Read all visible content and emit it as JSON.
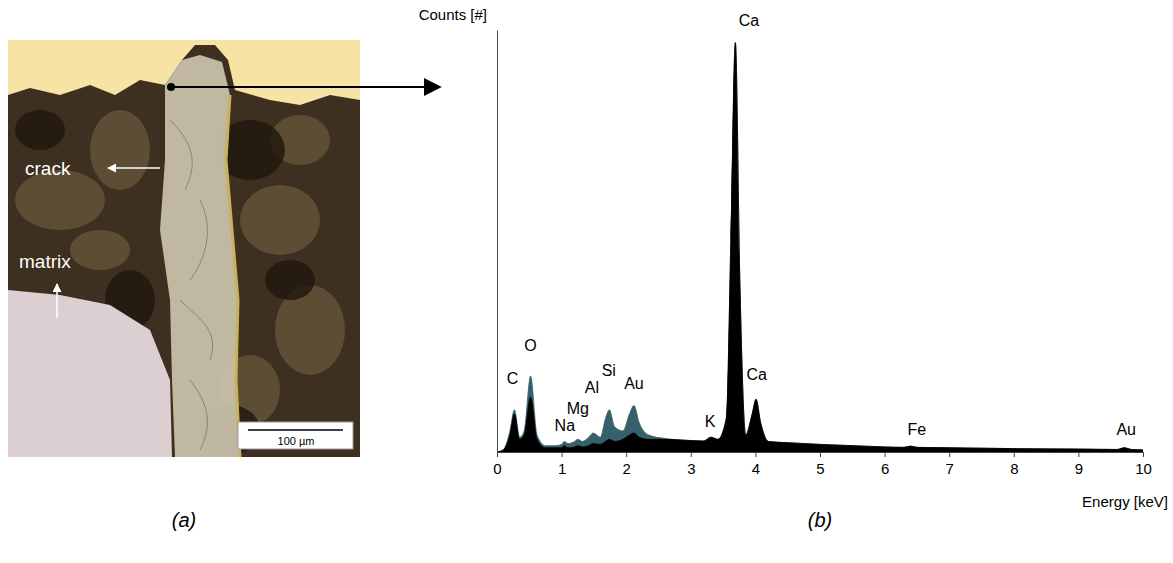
{
  "chart_data": {
    "type": "area",
    "x_label": "Energy [keV]",
    "y_label": "Counts [#]",
    "x": [
      0.0,
      0.1,
      0.2,
      0.27,
      0.35,
      0.42,
      0.52,
      0.62,
      0.75,
      0.9,
      1.0,
      1.04,
      1.1,
      1.2,
      1.25,
      1.32,
      1.42,
      1.49,
      1.6,
      1.68,
      1.74,
      1.82,
      1.95,
      2.05,
      2.12,
      2.2,
      2.35,
      2.6,
      2.9,
      3.2,
      3.31,
      3.42,
      3.55,
      3.62,
      3.69,
      3.76,
      3.85,
      3.95,
      4.01,
      4.08,
      4.2,
      4.5,
      5.0,
      5.5,
      6.0,
      6.3,
      6.4,
      6.5,
      7.0,
      8.0,
      9.0,
      9.6,
      9.71,
      9.82,
      10.0
    ],
    "series": [
      {
        "color": "#36606b",
        "values": [
          0,
          0.6,
          5,
          10,
          3.5,
          5,
          18,
          4,
          1.5,
          1.5,
          1.8,
          2.5,
          2,
          2.5,
          3,
          2.5,
          3.5,
          4.5,
          3.5,
          8,
          10,
          6,
          5,
          9,
          11,
          7,
          4,
          3.2,
          2.8,
          2.6,
          3.5,
          3,
          8,
          50,
          97,
          40,
          4,
          9,
          12.5,
          7,
          2.5,
          2.2,
          1.8,
          1.5,
          1.2,
          1.1,
          1.4,
          1.1,
          1,
          0.8,
          0.7,
          0.6,
          1,
          0.6,
          0.5
        ]
      },
      {
        "color": "#000000",
        "values": [
          0,
          0.5,
          4,
          9,
          3,
          4,
          13,
          3,
          1,
          1,
          1,
          1.5,
          1,
          1.2,
          1.5,
          1.2,
          1.5,
          2,
          1.8,
          2.5,
          3,
          2.5,
          3,
          4,
          4.5,
          3.5,
          3,
          3,
          2.8,
          2.6,
          3.5,
          3,
          8,
          50,
          97,
          40,
          4,
          9,
          12.5,
          7,
          2.5,
          2.2,
          1.8,
          1.5,
          1.2,
          1.1,
          1.4,
          1.1,
          1,
          0.8,
          0.7,
          0.6,
          1,
          0.6,
          0.5
        ]
      }
    ],
    "xlim": [
      0,
      10
    ],
    "xticks": [
      0,
      1,
      2,
      3,
      4,
      5,
      6,
      7,
      8,
      9,
      10
    ],
    "ylim": [
      0,
      100
    ],
    "tick_labels": "x",
    "grid": false,
    "annotations": [
      {
        "text": "C",
        "x": 0.24,
        "y": 16
      },
      {
        "text": "O",
        "x": 0.52,
        "y": 24
      },
      {
        "text": "Na",
        "x": 1.05,
        "y": 5
      },
      {
        "text": "Mg",
        "x": 1.25,
        "y": 9
      },
      {
        "text": "Al",
        "x": 1.47,
        "y": 14
      },
      {
        "text": "Si",
        "x": 1.73,
        "y": 18
      },
      {
        "text": "Au",
        "x": 2.12,
        "y": 15
      },
      {
        "text": "K",
        "x": 3.3,
        "y": 6
      },
      {
        "text": "Ca",
        "x": 3.9,
        "y": 101
      },
      {
        "text": "Ca",
        "x": 4.02,
        "y": 17
      },
      {
        "text": "Fe",
        "x": 6.5,
        "y": 4
      },
      {
        "text": "Au",
        "x": 9.74,
        "y": 4
      }
    ]
  },
  "micrograph": {
    "labels": [
      "crack",
      "matrix"
    ],
    "scale_bar": "100 µm"
  },
  "panel_labels": [
    "(a)",
    "(b)"
  ]
}
